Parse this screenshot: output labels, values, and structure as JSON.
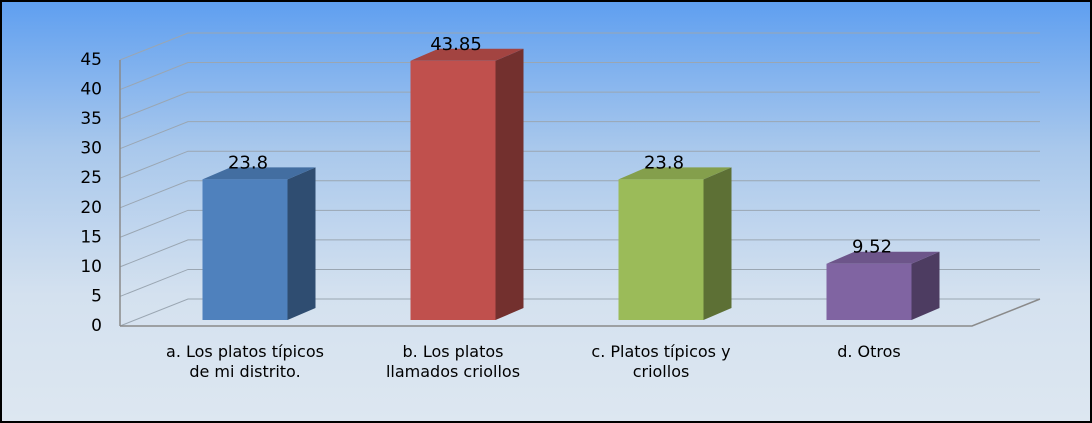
{
  "chart_data": {
    "type": "bar3d",
    "categories": [
      "a. Los platos típicos de mi distrito.",
      "b. Los platos llamados criollos",
      "c. Platos típicos y criollos",
      "d. Otros"
    ],
    "values": [
      23.8,
      43.85,
      23.8,
      9.52
    ],
    "colors": [
      "#4f81bd",
      "#c0504d",
      "#9bbb59",
      "#8064a2"
    ],
    "ylim": [
      0,
      45
    ],
    "yticks": [
      0,
      5,
      10,
      15,
      20,
      25,
      30,
      35,
      40,
      45
    ],
    "grid": true
  }
}
